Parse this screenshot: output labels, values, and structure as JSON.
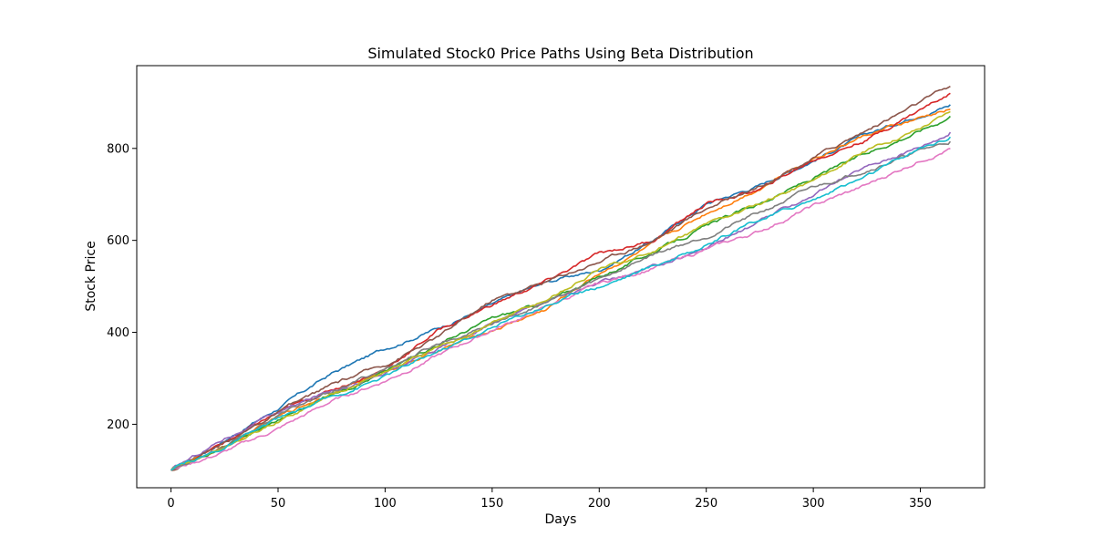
{
  "chart_data": {
    "type": "line",
    "title": "Simulated Stock0 Price Paths Using Beta Distribution",
    "xlabel": "Days",
    "ylabel": "Stock Price",
    "xlim": [
      -16,
      380
    ],
    "ylim": [
      62,
      980
    ],
    "xticks": [
      0,
      50,
      100,
      150,
      200,
      250,
      300,
      350
    ],
    "yticks": [
      200,
      400,
      600,
      800
    ],
    "grid": false,
    "legend": "none",
    "series": [
      {
        "color": "#1f77b4",
        "points": [
          [
            0,
            100
          ],
          [
            25,
            165
          ],
          [
            50,
            235
          ],
          [
            75,
            310
          ],
          [
            100,
            365
          ],
          [
            125,
            410
          ],
          [
            150,
            460
          ],
          [
            175,
            510
          ],
          [
            200,
            535
          ],
          [
            225,
            600
          ],
          [
            250,
            680
          ],
          [
            275,
            720
          ],
          [
            300,
            775
          ],
          [
            325,
            830
          ],
          [
            350,
            875
          ],
          [
            364,
            895
          ]
        ]
      },
      {
        "color": "#ff7f0e",
        "points": [
          [
            0,
            100
          ],
          [
            25,
            150
          ],
          [
            50,
            215
          ],
          [
            75,
            270
          ],
          [
            100,
            315
          ],
          [
            125,
            360
          ],
          [
            150,
            405
          ],
          [
            175,
            450
          ],
          [
            200,
            530
          ],
          [
            225,
            590
          ],
          [
            250,
            660
          ],
          [
            275,
            715
          ],
          [
            300,
            780
          ],
          [
            325,
            830
          ],
          [
            350,
            865
          ],
          [
            364,
            885
          ]
        ]
      },
      {
        "color": "#2ca02c",
        "points": [
          [
            0,
            100
          ],
          [
            25,
            150
          ],
          [
            50,
            210
          ],
          [
            75,
            265
          ],
          [
            100,
            315
          ],
          [
            125,
            375
          ],
          [
            150,
            430
          ],
          [
            175,
            465
          ],
          [
            200,
            520
          ],
          [
            225,
            575
          ],
          [
            250,
            630
          ],
          [
            275,
            680
          ],
          [
            300,
            735
          ],
          [
            325,
            790
          ],
          [
            350,
            840
          ],
          [
            364,
            870
          ]
        ]
      },
      {
        "color": "#d62728",
        "points": [
          [
            0,
            100
          ],
          [
            25,
            160
          ],
          [
            50,
            225
          ],
          [
            75,
            275
          ],
          [
            100,
            320
          ],
          [
            125,
            405
          ],
          [
            150,
            460
          ],
          [
            175,
            510
          ],
          [
            200,
            570
          ],
          [
            225,
            600
          ],
          [
            250,
            680
          ],
          [
            275,
            710
          ],
          [
            300,
            775
          ],
          [
            325,
            820
          ],
          [
            350,
            885
          ],
          [
            364,
            920
          ]
        ]
      },
      {
        "color": "#9467bd",
        "points": [
          [
            0,
            100
          ],
          [
            25,
            170
          ],
          [
            50,
            225
          ],
          [
            75,
            275
          ],
          [
            100,
            310
          ],
          [
            125,
            365
          ],
          [
            150,
            420
          ],
          [
            175,
            470
          ],
          [
            200,
            505
          ],
          [
            225,
            540
          ],
          [
            250,
            585
          ],
          [
            275,
            640
          ],
          [
            300,
            700
          ],
          [
            325,
            760
          ],
          [
            350,
            805
          ],
          [
            364,
            835
          ]
        ]
      },
      {
        "color": "#8c564b",
        "points": [
          [
            0,
            100
          ],
          [
            25,
            160
          ],
          [
            50,
            225
          ],
          [
            75,
            285
          ],
          [
            100,
            330
          ],
          [
            125,
            390
          ],
          [
            150,
            470
          ],
          [
            175,
            510
          ],
          [
            200,
            555
          ],
          [
            225,
            600
          ],
          [
            250,
            670
          ],
          [
            275,
            720
          ],
          [
            300,
            780
          ],
          [
            325,
            840
          ],
          [
            350,
            900
          ],
          [
            364,
            935
          ]
        ]
      },
      {
        "color": "#e377c2",
        "points": [
          [
            0,
            100
          ],
          [
            25,
            140
          ],
          [
            50,
            190
          ],
          [
            75,
            250
          ],
          [
            100,
            295
          ],
          [
            125,
            350
          ],
          [
            150,
            405
          ],
          [
            175,
            455
          ],
          [
            200,
            505
          ],
          [
            225,
            540
          ],
          [
            250,
            580
          ],
          [
            275,
            620
          ],
          [
            300,
            675
          ],
          [
            325,
            720
          ],
          [
            350,
            775
          ],
          [
            364,
            800
          ]
        ]
      },
      {
        "color": "#7f7f7f",
        "points": [
          [
            0,
            100
          ],
          [
            25,
            155
          ],
          [
            50,
            220
          ],
          [
            75,
            270
          ],
          [
            100,
            320
          ],
          [
            125,
            375
          ],
          [
            150,
            420
          ],
          [
            175,
            465
          ],
          [
            200,
            515
          ],
          [
            225,
            570
          ],
          [
            250,
            610
          ],
          [
            275,
            660
          ],
          [
            300,
            715
          ],
          [
            325,
            755
          ],
          [
            350,
            795
          ],
          [
            364,
            815
          ]
        ]
      },
      {
        "color": "#bcbd22",
        "points": [
          [
            0,
            100
          ],
          [
            25,
            150
          ],
          [
            50,
            205
          ],
          [
            75,
            265
          ],
          [
            100,
            315
          ],
          [
            125,
            365
          ],
          [
            150,
            420
          ],
          [
            175,
            470
          ],
          [
            200,
            535
          ],
          [
            225,
            575
          ],
          [
            250,
            635
          ],
          [
            275,
            680
          ],
          [
            300,
            730
          ],
          [
            325,
            795
          ],
          [
            350,
            845
          ],
          [
            364,
            880
          ]
        ]
      },
      {
        "color": "#17becf",
        "points": [
          [
            0,
            100
          ],
          [
            25,
            150
          ],
          [
            50,
            210
          ],
          [
            75,
            260
          ],
          [
            100,
            305
          ],
          [
            125,
            360
          ],
          [
            150,
            410
          ],
          [
            175,
            460
          ],
          [
            200,
            500
          ],
          [
            225,
            545
          ],
          [
            250,
            590
          ],
          [
            275,
            645
          ],
          [
            300,
            690
          ],
          [
            325,
            740
          ],
          [
            350,
            800
          ],
          [
            364,
            825
          ]
        ]
      }
    ]
  }
}
